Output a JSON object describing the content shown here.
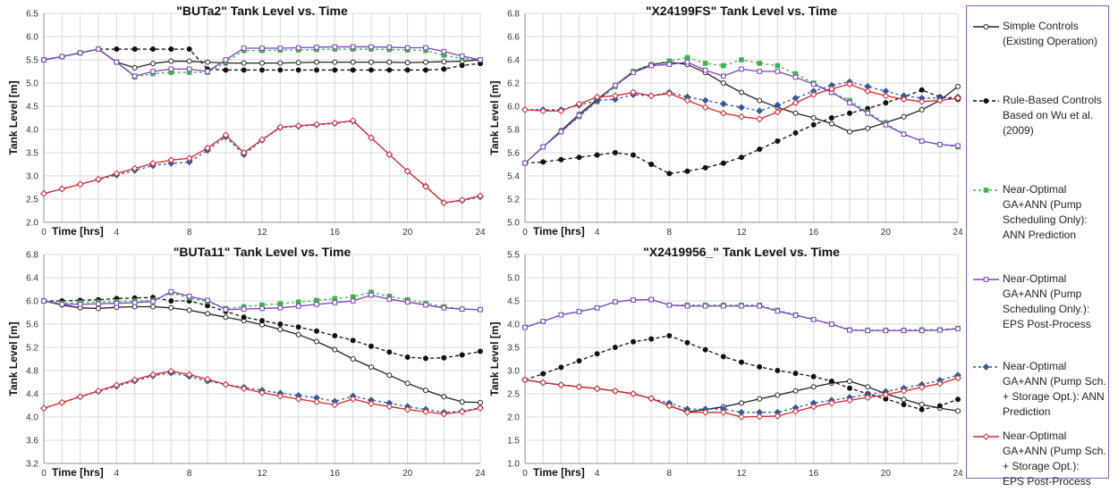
{
  "legend": [
    {
      "key": "simple",
      "label": "Simple Controls\n(Existing Operation)",
      "color": "#222222",
      "dash": "",
      "marker": "circle",
      "fill": "#ffffff"
    },
    {
      "key": "rule",
      "label": "Rule-Based Controls\nBased on Wu et al.\n(2009)",
      "color": "#111111",
      "dash": "4,3",
      "marker": "circle",
      "fill": "#111111"
    },
    {
      "key": "ga_pump_ann",
      "label": "Near-Optimal\nGA+ANN (Pump\nScheduling Only):\nANN Prediction",
      "color": "#3cb34a",
      "dash": "3,3",
      "marker": "square",
      "fill": "#3cb34a"
    },
    {
      "key": "ga_pump_eps",
      "label": "Near-Optimal\nGA+ANN (Pump\nScheduling Only.):\nEPS Post-Process",
      "color": "#7b3fbf",
      "dash": "",
      "marker": "square",
      "fill": "#ffffff"
    },
    {
      "key": "ga_stor_ann",
      "label": "Near-Optimal\nGA+ANN (Pump Sch.\n+ Storage Opt.): ANN\nPrediction",
      "color": "#2e5a9e",
      "dash": "3,3",
      "marker": "diamond",
      "fill": "#2e5a9e"
    },
    {
      "key": "ga_stor_eps",
      "label": "Near-Optimal\nGA+ANN (Pump Sch.\n+ Storage Opt.):\nEPS Post-Process",
      "color": "#d6262c",
      "dash": "",
      "marker": "diamond",
      "fill": "#ffffff"
    }
  ],
  "chart_data": [
    {
      "type": "line",
      "title": "\"BUTa2\" Tank Level vs. Time",
      "xlabel": "Time [hrs]",
      "ylabel": "Tank Level [m]",
      "xlim": [
        0,
        24
      ],
      "ylim": [
        2.0,
        6.5
      ],
      "yticks": [
        "2.0",
        "2.5",
        "3.0",
        "3.5",
        "4.0",
        "4.5",
        "5.0",
        "5.5",
        "6.0",
        "6.5"
      ],
      "xticks": [
        "0",
        "4",
        "8",
        "12",
        "16",
        "20",
        "24"
      ],
      "x": [
        0,
        1,
        2,
        3,
        4,
        5,
        6,
        7,
        8,
        9,
        10,
        11,
        12,
        13,
        14,
        15,
        16,
        17,
        18,
        19,
        20,
        21,
        22,
        23,
        24
      ],
      "series": [
        {
          "key": "simple",
          "values": [
            5.5,
            5.57,
            5.65,
            5.73,
            5.45,
            5.33,
            5.42,
            5.47,
            5.47,
            5.45,
            5.43,
            5.43,
            5.43,
            5.43,
            5.44,
            5.45,
            5.45,
            5.45,
            5.45,
            5.45,
            5.44,
            5.45,
            5.46,
            5.47,
            5.5
          ]
        },
        {
          "key": "rule",
          "values": [
            5.5,
            5.57,
            5.65,
            5.73,
            5.73,
            5.73,
            5.73,
            5.73,
            5.73,
            5.3,
            5.28,
            5.28,
            5.28,
            5.28,
            5.28,
            5.28,
            5.28,
            5.28,
            5.28,
            5.28,
            5.28,
            5.28,
            5.3,
            5.38,
            5.42
          ]
        },
        {
          "key": "ga_pump_ann",
          "values": [
            5.5,
            5.57,
            5.65,
            5.73,
            5.45,
            5.13,
            5.2,
            5.23,
            5.23,
            5.23,
            5.45,
            5.7,
            5.7,
            5.71,
            5.71,
            5.72,
            5.73,
            5.73,
            5.73,
            5.72,
            5.71,
            5.7,
            5.6,
            5.53,
            5.5
          ]
        },
        {
          "key": "ga_pump_eps",
          "values": [
            5.5,
            5.57,
            5.65,
            5.73,
            5.45,
            5.15,
            5.25,
            5.3,
            5.3,
            5.25,
            5.5,
            5.75,
            5.75,
            5.75,
            5.76,
            5.77,
            5.78,
            5.78,
            5.78,
            5.77,
            5.76,
            5.76,
            5.68,
            5.58,
            5.5
          ]
        },
        {
          "key": "ga_stor_ann",
          "values": [
            2.62,
            2.72,
            2.82,
            2.92,
            3.02,
            3.12,
            3.22,
            3.27,
            3.3,
            3.55,
            3.84,
            3.46,
            3.77,
            4.04,
            4.07,
            4.1,
            4.13,
            4.18,
            3.82,
            3.46,
            3.1,
            2.78,
            2.42,
            2.47,
            2.55
          ]
        },
        {
          "key": "ga_stor_eps",
          "values": [
            2.62,
            2.72,
            2.82,
            2.93,
            3.05,
            3.16,
            3.27,
            3.34,
            3.38,
            3.6,
            3.88,
            3.5,
            3.78,
            4.05,
            4.08,
            4.11,
            4.14,
            4.19,
            3.82,
            3.46,
            3.1,
            2.77,
            2.42,
            2.48,
            2.57
          ]
        }
      ]
    },
    {
      "type": "line",
      "title": "\"X24199FS\" Tank Level vs. Time",
      "xlabel": "Time [hrs]",
      "ylabel": "Tank Level [m]",
      "xlim": [
        0,
        24
      ],
      "ylim": [
        5.0,
        6.8
      ],
      "yticks": [
        "5.0",
        "5.2",
        "5.4",
        "5.6",
        "5.8",
        "6.0",
        "6.2",
        "6.4",
        "6.6",
        "6.8"
      ],
      "xticks": [
        "0",
        "4",
        "8",
        "12",
        "16",
        "20",
        "24"
      ],
      "x": [
        0,
        1,
        2,
        3,
        4,
        5,
        6,
        7,
        8,
        9,
        10,
        11,
        12,
        13,
        14,
        15,
        16,
        17,
        18,
        19,
        20,
        21,
        22,
        23,
        24
      ],
      "series": [
        {
          "key": "simple",
          "values": [
            5.51,
            5.65,
            5.79,
            5.93,
            6.06,
            6.18,
            6.3,
            6.36,
            6.38,
            6.36,
            6.29,
            6.2,
            6.12,
            6.05,
            5.99,
            5.94,
            5.9,
            5.85,
            5.78,
            5.81,
            5.86,
            5.91,
            5.97,
            6.05,
            6.17
          ]
        },
        {
          "key": "rule",
          "values": [
            5.51,
            5.52,
            5.54,
            5.56,
            5.58,
            5.6,
            5.58,
            5.5,
            5.42,
            5.44,
            5.47,
            5.51,
            5.56,
            5.63,
            5.7,
            5.77,
            5.84,
            5.9,
            5.94,
            5.98,
            6.03,
            6.08,
            6.14,
            6.08,
            6.06
          ]
        },
        {
          "key": "ga_pump_ann",
          "values": [
            5.51,
            5.65,
            5.78,
            5.91,
            6.04,
            6.17,
            6.3,
            6.36,
            6.39,
            6.42,
            6.37,
            6.35,
            6.4,
            6.37,
            6.35,
            6.28,
            6.2,
            6.12,
            6.05,
            5.95,
            5.85,
            5.76,
            5.7,
            5.67,
            5.65
          ]
        },
        {
          "key": "ga_pump_eps",
          "values": [
            5.51,
            5.65,
            5.78,
            5.92,
            6.05,
            6.18,
            6.29,
            6.35,
            6.36,
            6.38,
            6.31,
            6.26,
            6.32,
            6.3,
            6.3,
            6.25,
            6.19,
            6.12,
            6.03,
            5.94,
            5.84,
            5.76,
            5.7,
            5.67,
            5.66
          ]
        },
        {
          "key": "ga_stor_ann",
          "values": [
            5.97,
            5.97,
            5.97,
            6.01,
            6.05,
            6.06,
            6.1,
            6.09,
            6.12,
            6.08,
            6.05,
            6.02,
            5.99,
            5.96,
            6.01,
            6.07,
            6.13,
            6.18,
            6.21,
            6.17,
            6.13,
            6.09,
            6.07,
            6.07,
            6.08
          ]
        },
        {
          "key": "ga_stor_eps",
          "values": [
            5.97,
            5.96,
            5.96,
            6.02,
            6.08,
            6.09,
            6.12,
            6.09,
            6.11,
            6.05,
            5.99,
            5.94,
            5.91,
            5.89,
            5.95,
            6.03,
            6.1,
            6.15,
            6.19,
            6.13,
            6.09,
            6.06,
            6.04,
            6.05,
            6.07
          ]
        }
      ]
    },
    {
      "type": "line",
      "title": "\"BUTa11\" Tank Level vs. Time",
      "xlabel": "Time [hrs]",
      "ylabel": "Tank Level [m]",
      "xlim": [
        0,
        24
      ],
      "ylim": [
        3.2,
        6.8
      ],
      "yticks": [
        "3.2",
        "3.6",
        "4.0",
        "4.4",
        "4.8",
        "5.2",
        "5.6",
        "6.0",
        "6.4",
        "6.8"
      ],
      "xticks": [
        "0",
        "4",
        "8",
        "12",
        "16",
        "20",
        "24"
      ],
      "x": [
        0,
        1,
        2,
        3,
        4,
        5,
        6,
        7,
        8,
        9,
        10,
        11,
        12,
        13,
        14,
        15,
        16,
        17,
        18,
        19,
        20,
        21,
        22,
        23,
        24
      ],
      "series": [
        {
          "key": "simple",
          "values": [
            6.0,
            5.93,
            5.88,
            5.87,
            5.89,
            5.9,
            5.9,
            5.88,
            5.84,
            5.78,
            5.72,
            5.66,
            5.59,
            5.51,
            5.42,
            5.3,
            5.16,
            5.0,
            4.86,
            4.72,
            4.58,
            4.46,
            4.35,
            4.26,
            4.25
          ]
        },
        {
          "key": "rule",
          "values": [
            6.0,
            6.0,
            6.01,
            6.02,
            6.04,
            6.05,
            6.06,
            6.0,
            6.0,
            5.92,
            5.82,
            5.72,
            5.66,
            5.6,
            5.55,
            5.48,
            5.4,
            5.32,
            5.22,
            5.12,
            5.03,
            5.01,
            5.02,
            5.07,
            5.13
          ]
        },
        {
          "key": "ga_pump_ann",
          "values": [
            6.0,
            5.96,
            5.97,
            5.98,
            5.99,
            6.0,
            6.01,
            6.14,
            6.05,
            5.99,
            5.87,
            5.9,
            5.93,
            5.95,
            5.98,
            6.01,
            6.04,
            6.07,
            6.15,
            6.08,
            6.02,
            5.96,
            5.9,
            5.86,
            5.85
          ]
        },
        {
          "key": "ga_pump_eps",
          "values": [
            6.0,
            5.94,
            5.94,
            5.95,
            5.96,
            5.97,
            5.99,
            6.16,
            6.08,
            6.01,
            5.85,
            5.86,
            5.87,
            5.88,
            5.91,
            5.94,
            5.97,
            6.0,
            6.1,
            6.03,
            5.98,
            5.93,
            5.88,
            5.86,
            5.85
          ]
        },
        {
          "key": "ga_stor_ann",
          "values": [
            4.15,
            4.25,
            4.35,
            4.44,
            4.53,
            4.62,
            4.71,
            4.76,
            4.7,
            4.62,
            4.56,
            4.51,
            4.46,
            4.41,
            4.37,
            4.33,
            4.27,
            4.36,
            4.29,
            4.24,
            4.18,
            4.13,
            4.08,
            4.1,
            4.16
          ]
        },
        {
          "key": "ga_stor_eps",
          "values": [
            4.15,
            4.25,
            4.35,
            4.45,
            4.55,
            4.64,
            4.73,
            4.79,
            4.73,
            4.65,
            4.56,
            4.49,
            4.42,
            4.36,
            4.31,
            4.26,
            4.21,
            4.31,
            4.23,
            4.18,
            4.13,
            4.09,
            4.05,
            4.09,
            4.15
          ]
        }
      ]
    },
    {
      "type": "line",
      "title": "\"X2419956_\" Tank Level vs. Time",
      "xlabel": "Time [hrs]",
      "ylabel": "Tank Level [m]",
      "xlim": [
        0,
        24
      ],
      "ylim": [
        1.0,
        5.5
      ],
      "yticks": [
        "1.0",
        "1.5",
        "2.0",
        "2.5",
        "3.0",
        "3.5",
        "4.0",
        "4.5",
        "5.0",
        "5.5"
      ],
      "xticks": [
        "0",
        "4",
        "8",
        "12",
        "16",
        "20",
        "24"
      ],
      "x": [
        0,
        1,
        2,
        3,
        4,
        5,
        6,
        7,
        8,
        9,
        10,
        11,
        12,
        13,
        14,
        15,
        16,
        17,
        18,
        19,
        20,
        21,
        22,
        23,
        24
      ],
      "series": [
        {
          "key": "simple",
          "values": [
            2.8,
            2.74,
            2.69,
            2.65,
            2.61,
            2.56,
            2.5,
            2.4,
            2.24,
            2.11,
            2.16,
            2.22,
            2.3,
            2.39,
            2.47,
            2.56,
            2.65,
            2.73,
            2.77,
            2.65,
            2.5,
            2.38,
            2.27,
            2.19,
            2.13
          ]
        },
        {
          "key": "rule",
          "values": [
            2.8,
            2.93,
            3.07,
            3.21,
            3.36,
            3.5,
            3.62,
            3.68,
            3.75,
            3.6,
            3.45,
            3.3,
            3.18,
            3.08,
            3.0,
            2.94,
            2.87,
            2.77,
            2.62,
            2.5,
            2.39,
            2.27,
            2.16,
            2.24,
            2.38
          ]
        },
        {
          "key": "ga_pump_ann",
          "values": [
            3.93,
            4.06,
            4.2,
            4.27,
            4.35,
            4.48,
            4.52,
            4.53,
            4.41,
            4.41,
            4.41,
            4.41,
            4.41,
            4.41,
            4.3,
            4.2,
            4.1,
            4.0,
            3.88,
            3.87,
            3.87,
            3.87,
            3.88,
            3.88,
            3.91
          ]
        },
        {
          "key": "ga_pump_eps",
          "values": [
            3.93,
            4.06,
            4.2,
            4.27,
            4.35,
            4.48,
            4.52,
            4.53,
            4.41,
            4.39,
            4.39,
            4.39,
            4.39,
            4.39,
            4.28,
            4.19,
            4.1,
            4.0,
            3.87,
            3.86,
            3.86,
            3.86,
            3.86,
            3.87,
            3.9
          ]
        },
        {
          "key": "ga_stor_ann",
          "values": [
            2.8,
            2.74,
            2.69,
            2.65,
            2.61,
            2.56,
            2.5,
            2.4,
            2.3,
            2.17,
            2.17,
            2.17,
            2.1,
            2.1,
            2.1,
            2.2,
            2.3,
            2.36,
            2.42,
            2.48,
            2.55,
            2.62,
            2.7,
            2.79,
            2.9
          ]
        },
        {
          "key": "ga_stor_eps",
          "values": [
            2.8,
            2.74,
            2.69,
            2.65,
            2.61,
            2.56,
            2.5,
            2.4,
            2.24,
            2.1,
            2.1,
            2.1,
            2.0,
            2.01,
            2.02,
            2.12,
            2.22,
            2.3,
            2.36,
            2.42,
            2.48,
            2.56,
            2.64,
            2.72,
            2.84
          ]
        }
      ]
    }
  ]
}
